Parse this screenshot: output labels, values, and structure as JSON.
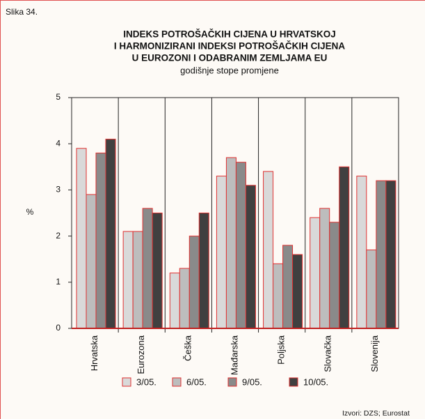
{
  "label": "Slika 34.",
  "source": "Izvori: DZS; Eurostat",
  "chart_data": {
    "type": "bar",
    "title": [
      "INDEKS POTROŠAČKIH CIJENA U HRVATSKOJ",
      "I HARMONIZIRANI INDEKSI POTROŠAČKIH CIJENA",
      "U EUROZONI I ODABRANIM ZEMLJAMA EU"
    ],
    "subtitle": "godišnje stope promjene",
    "y_label": "%",
    "categories": [
      "Hrvatska",
      "Eurozona",
      "Češka",
      "Mađarska",
      "Poljska",
      "Slovačka",
      "Slovenija"
    ],
    "series": [
      {
        "name": "3/05.",
        "color": "#d9d9d9",
        "values": [
          3.9,
          2.1,
          1.2,
          3.3,
          3.4,
          2.4,
          3.3
        ]
      },
      {
        "name": "6/05.",
        "color": "#bdbdbd",
        "values": [
          2.9,
          2.1,
          1.3,
          3.7,
          1.4,
          2.6,
          1.7
        ]
      },
      {
        "name": "9/05.",
        "color": "#8a8a8a",
        "values": [
          3.8,
          2.6,
          2.0,
          3.6,
          1.8,
          2.3,
          3.2
        ]
      },
      {
        "name": "10/05.",
        "color": "#404040",
        "values": [
          4.1,
          2.5,
          2.5,
          3.1,
          1.6,
          3.5,
          3.2
        ]
      }
    ],
    "ylim": [
      0,
      5
    ],
    "yticks": [
      0,
      1,
      2,
      3,
      4,
      5
    ],
    "bar_edge_color": "#e03030"
  }
}
